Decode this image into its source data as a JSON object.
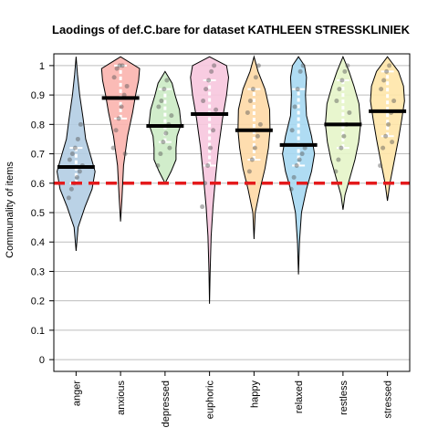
{
  "chart_data": {
    "type": "violin",
    "title": "Laodings of def.C.bare for dataset KATHLEEN STRESSKLINIEK",
    "xlabel": "",
    "ylabel": "Communality of items",
    "ylim": [
      -0.04,
      1.04
    ],
    "yticks": [
      "0",
      "0.1",
      "0.2",
      "0.3",
      "0.4",
      "0.5",
      "0.6",
      "0.7",
      "0.8",
      "0.9",
      "1"
    ],
    "grid": true,
    "reference_line": {
      "value": 0.6,
      "color": "#e41a1c",
      "style": "dashed"
    },
    "categories": [
      "anger",
      "anxious",
      "depressed",
      "euphoric",
      "happy",
      "relaxed",
      "restless",
      "stressed"
    ],
    "series": [
      {
        "category": "anger",
        "fill": "#b3cde3",
        "mean": 0.655,
        "min": 0.37,
        "max": 1.03
      },
      {
        "category": "anxious",
        "fill": "#fbb4ae",
        "mean": 0.89,
        "min": 0.47,
        "max": 1.03
      },
      {
        "category": "depressed",
        "fill": "#ccebc5",
        "mean": 0.795,
        "min": 0.6,
        "max": 0.98
      },
      {
        "category": "euphoric",
        "fill": "#f7c6de",
        "mean": 0.835,
        "min": 0.19,
        "max": 1.03
      },
      {
        "category": "happy",
        "fill": "#fed9a6",
        "mean": 0.78,
        "min": 0.41,
        "max": 1.03
      },
      {
        "category": "relaxed",
        "fill": "#a6d8f2",
        "mean": 0.73,
        "min": 0.29,
        "max": 1.03
      },
      {
        "category": "restless",
        "fill": "#e6f5c9",
        "mean": 0.8,
        "min": 0.51,
        "max": 1.03
      },
      {
        "category": "stressed",
        "fill": "#ffe6a8",
        "mean": 0.845,
        "min": 0.54,
        "max": 1.03
      }
    ]
  }
}
